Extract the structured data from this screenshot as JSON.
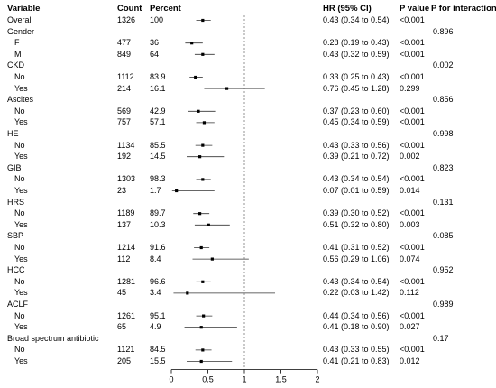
{
  "chart_data": {
    "type": "forest",
    "headers": {
      "variable": "Variable",
      "count": "Count",
      "percent": "Percent",
      "hr": "HR (95% CI)",
      "pvalue": "P value",
      "pinteraction": "P for interaction"
    },
    "reference_line": 1,
    "xlim": [
      0,
      2
    ],
    "x_ticks": [
      "0",
      "0.5",
      "1",
      "1.5",
      "2"
    ],
    "x_tick_values": [
      0,
      0.5,
      1,
      1.5,
      2
    ],
    "rows": [
      {
        "label": "Overall",
        "indent": false,
        "count": "1326",
        "percent": "100",
        "hr": 0.43,
        "lo": 0.34,
        "hi": 0.54,
        "hr_text": "0.43 (0.34 to 0.54)",
        "p": "<0.001",
        "p_int": ""
      },
      {
        "label": "Gender",
        "indent": false,
        "count": "",
        "percent": "",
        "hr": null,
        "lo": null,
        "hi": null,
        "hr_text": "",
        "p": "",
        "p_int": "0.896"
      },
      {
        "label": "F",
        "indent": true,
        "count": "477",
        "percent": "36",
        "hr": 0.28,
        "lo": 0.19,
        "hi": 0.43,
        "hr_text": "0.28 (0.19 to 0.43)",
        "p": "<0.001",
        "p_int": ""
      },
      {
        "label": "M",
        "indent": true,
        "count": "849",
        "percent": "64",
        "hr": 0.43,
        "lo": 0.32,
        "hi": 0.59,
        "hr_text": "0.43 (0.32 to 0.59)",
        "p": "<0.001",
        "p_int": ""
      },
      {
        "label": "CKD",
        "indent": false,
        "count": "",
        "percent": "",
        "hr": null,
        "lo": null,
        "hi": null,
        "hr_text": "",
        "p": "",
        "p_int": "0.002"
      },
      {
        "label": "No",
        "indent": true,
        "count": "1112",
        "percent": "83.9",
        "hr": 0.33,
        "lo": 0.25,
        "hi": 0.43,
        "hr_text": "0.33 (0.25 to 0.43)",
        "p": "<0.001",
        "p_int": ""
      },
      {
        "label": "Yes",
        "indent": true,
        "count": "214",
        "percent": "16.1",
        "hr": 0.76,
        "lo": 0.45,
        "hi": 1.28,
        "hr_text": "0.76 (0.45 to 1.28)",
        "p": "0.299",
        "p_int": ""
      },
      {
        "label": "Ascites",
        "indent": false,
        "count": "",
        "percent": "",
        "hr": null,
        "lo": null,
        "hi": null,
        "hr_text": "",
        "p": "",
        "p_int": "0.856"
      },
      {
        "label": "No",
        "indent": true,
        "count": "569",
        "percent": "42.9",
        "hr": 0.37,
        "lo": 0.23,
        "hi": 0.6,
        "hr_text": "0.37 (0.23 to 0.60)",
        "p": "<0.001",
        "p_int": ""
      },
      {
        "label": "Yes",
        "indent": true,
        "count": "757",
        "percent": "57.1",
        "hr": 0.45,
        "lo": 0.34,
        "hi": 0.59,
        "hr_text": "0.45 (0.34 to 0.59)",
        "p": "<0.001",
        "p_int": ""
      },
      {
        "label": "HE",
        "indent": false,
        "count": "",
        "percent": "",
        "hr": null,
        "lo": null,
        "hi": null,
        "hr_text": "",
        "p": "",
        "p_int": "0.998"
      },
      {
        "label": "No",
        "indent": true,
        "count": "1134",
        "percent": "85.5",
        "hr": 0.43,
        "lo": 0.33,
        "hi": 0.56,
        "hr_text": "0.43 (0.33 to 0.56)",
        "p": "<0.001",
        "p_int": ""
      },
      {
        "label": "Yes",
        "indent": true,
        "count": "192",
        "percent": "14.5",
        "hr": 0.39,
        "lo": 0.21,
        "hi": 0.72,
        "hr_text": "0.39 (0.21 to 0.72)",
        "p": "0.002",
        "p_int": ""
      },
      {
        "label": "GIB",
        "indent": false,
        "count": "",
        "percent": "",
        "hr": null,
        "lo": null,
        "hi": null,
        "hr_text": "",
        "p": "",
        "p_int": "0.823"
      },
      {
        "label": "No",
        "indent": true,
        "count": "1303",
        "percent": "98.3",
        "hr": 0.43,
        "lo": 0.34,
        "hi": 0.54,
        "hr_text": "0.43 (0.34 to 0.54)",
        "p": "<0.001",
        "p_int": ""
      },
      {
        "label": "Yes",
        "indent": true,
        "count": "23",
        "percent": "1.7",
        "hr": 0.07,
        "lo": 0.01,
        "hi": 0.59,
        "hr_text": "0.07 (0.01 to 0.59)",
        "p": "0.014",
        "p_int": ""
      },
      {
        "label": "HRS",
        "indent": false,
        "count": "",
        "percent": "",
        "hr": null,
        "lo": null,
        "hi": null,
        "hr_text": "",
        "p": "",
        "p_int": "0.131"
      },
      {
        "label": "No",
        "indent": true,
        "count": "1189",
        "percent": "89.7",
        "hr": 0.39,
        "lo": 0.3,
        "hi": 0.52,
        "hr_text": "0.39 (0.30 to 0.52)",
        "p": "<0.001",
        "p_int": ""
      },
      {
        "label": "Yes",
        "indent": true,
        "count": "137",
        "percent": "10.3",
        "hr": 0.51,
        "lo": 0.32,
        "hi": 0.8,
        "hr_text": "0.51 (0.32 to 0.80)",
        "p": "0.003",
        "p_int": ""
      },
      {
        "label": "SBP",
        "indent": false,
        "count": "",
        "percent": "",
        "hr": null,
        "lo": null,
        "hi": null,
        "hr_text": "",
        "p": "",
        "p_int": "0.085"
      },
      {
        "label": "No",
        "indent": true,
        "count": "1214",
        "percent": "91.6",
        "hr": 0.41,
        "lo": 0.31,
        "hi": 0.52,
        "hr_text": "0.41 (0.31 to 0.52)",
        "p": "<0.001",
        "p_int": ""
      },
      {
        "label": "Yes",
        "indent": true,
        "count": "112",
        "percent": "8.4",
        "hr": 0.56,
        "lo": 0.29,
        "hi": 1.06,
        "hr_text": "0.56 (0.29 to 1.06)",
        "p": "0.074",
        "p_int": ""
      },
      {
        "label": "HCC",
        "indent": false,
        "count": "",
        "percent": "",
        "hr": null,
        "lo": null,
        "hi": null,
        "hr_text": "",
        "p": "",
        "p_int": "0.952"
      },
      {
        "label": "No",
        "indent": true,
        "count": "1281",
        "percent": "96.6",
        "hr": 0.43,
        "lo": 0.34,
        "hi": 0.54,
        "hr_text": "0.43 (0.34 to 0.54)",
        "p": "<0.001",
        "p_int": ""
      },
      {
        "label": "Yes",
        "indent": true,
        "count": "45",
        "percent": "3.4",
        "hr": 0.22,
        "lo": 0.03,
        "hi": 1.42,
        "hr_text": "0.22 (0.03 to 1.42)",
        "p": "0.112",
        "p_int": ""
      },
      {
        "label": "ACLF",
        "indent": false,
        "count": "",
        "percent": "",
        "hr": null,
        "lo": null,
        "hi": null,
        "hr_text": "",
        "p": "",
        "p_int": "0.989"
      },
      {
        "label": "No",
        "indent": true,
        "count": "1261",
        "percent": "95.1",
        "hr": 0.44,
        "lo": 0.34,
        "hi": 0.56,
        "hr_text": "0.44 (0.34 to 0.56)",
        "p": "<0.001",
        "p_int": ""
      },
      {
        "label": "Yes",
        "indent": true,
        "count": "65",
        "percent": "4.9",
        "hr": 0.41,
        "lo": 0.18,
        "hi": 0.9,
        "hr_text": "0.41 (0.18 to 0.90)",
        "p": "0.027",
        "p_int": ""
      },
      {
        "label": "Broad  spectrum  antibiotic",
        "indent": false,
        "count": "",
        "percent": "",
        "hr": null,
        "lo": null,
        "hi": null,
        "hr_text": "",
        "p": "",
        "p_int": "0.17"
      },
      {
        "label": "No",
        "indent": true,
        "count": "1121",
        "percent": "84.5",
        "hr": 0.43,
        "lo": 0.33,
        "hi": 0.55,
        "hr_text": "0.43 (0.33 to 0.55)",
        "p": "<0.001",
        "p_int": ""
      },
      {
        "label": "Yes",
        "indent": true,
        "count": "205",
        "percent": "15.5",
        "hr": 0.41,
        "lo": 0.21,
        "hi": 0.83,
        "hr_text": "0.41 (0.21 to 0.83)",
        "p": "0.012",
        "p_int": ""
      }
    ]
  }
}
